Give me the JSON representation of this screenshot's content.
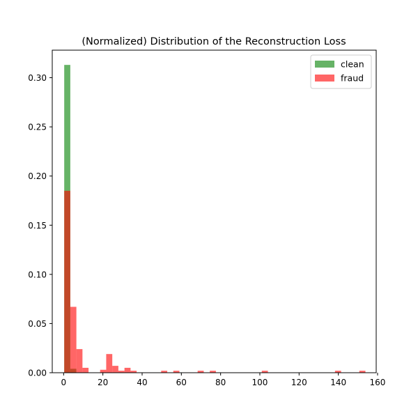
{
  "chart_data": {
    "type": "bar",
    "title": "(Normalized) Distribution of the Reconstruction Loss",
    "xlabel": "",
    "ylabel": "",
    "xlim": [
      -5.8,
      159.3
    ],
    "ylim": [
      0,
      0.328
    ],
    "xticks": [
      0,
      20,
      40,
      60,
      80,
      100,
      120,
      140,
      160
    ],
    "yticks": [
      0.0,
      0.05,
      0.1,
      0.15,
      0.2,
      0.25,
      0.3
    ],
    "ytick_labels": [
      "0.00",
      "0.05",
      "0.10",
      "0.15",
      "0.20",
      "0.25",
      "0.30"
    ],
    "grid": false,
    "legend_position": "top-right",
    "series": [
      {
        "name": "clean",
        "color": "#008000",
        "opacity": 0.6,
        "bins": [
          {
            "x0": 0.3,
            "x1": 3.4,
            "value": 0.313
          },
          {
            "x0": 3.4,
            "x1": 6.5,
            "value": 0.004
          }
        ]
      },
      {
        "name": "fraud",
        "color": "#ff0000",
        "opacity": 0.6,
        "bins": [
          {
            "x0": 0.3,
            "x1": 3.4,
            "value": 0.185
          },
          {
            "x0": 3.4,
            "x1": 6.5,
            "value": 0.067
          },
          {
            "x0": 6.5,
            "x1": 9.6,
            "value": 0.024
          },
          {
            "x0": 9.6,
            "x1": 12.7,
            "value": 0.005
          },
          {
            "x0": 18.6,
            "x1": 21.7,
            "value": 0.003
          },
          {
            "x0": 21.7,
            "x1": 24.8,
            "value": 0.019
          },
          {
            "x0": 24.8,
            "x1": 27.9,
            "value": 0.007
          },
          {
            "x0": 27.9,
            "x1": 31.0,
            "value": 0.002
          },
          {
            "x0": 31.0,
            "x1": 34.1,
            "value": 0.005
          },
          {
            "x0": 34.1,
            "x1": 37.2,
            "value": 0.002
          },
          {
            "x0": 49.7,
            "x1": 52.8,
            "value": 0.002
          },
          {
            "x0": 55.9,
            "x1": 59.0,
            "value": 0.002
          },
          {
            "x0": 68.3,
            "x1": 71.4,
            "value": 0.002
          },
          {
            "x0": 74.5,
            "x1": 77.6,
            "value": 0.002
          },
          {
            "x0": 101.0,
            "x1": 104.1,
            "value": 0.002
          },
          {
            "x0": 138.3,
            "x1": 141.4,
            "value": 0.002
          },
          {
            "x0": 150.7,
            "x1": 153.8,
            "value": 0.002
          }
        ]
      }
    ]
  }
}
